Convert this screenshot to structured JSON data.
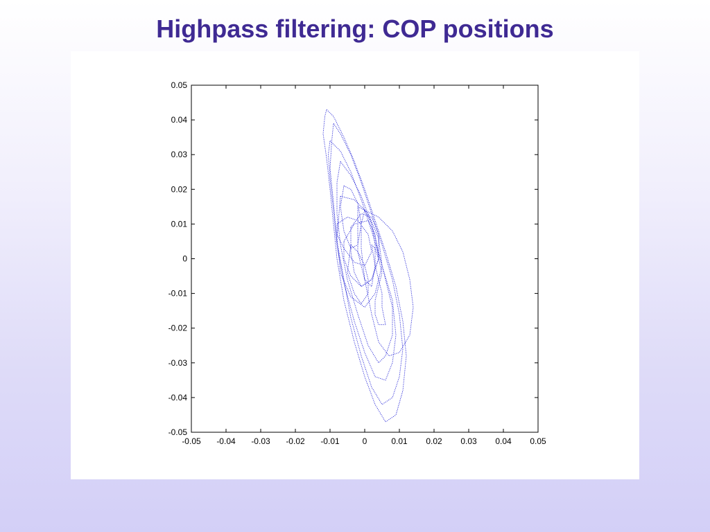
{
  "slide": {
    "title": "Highpass filtering: COP positions"
  },
  "colors": {
    "title": "#3f2a93",
    "trace": "#1f1fd6",
    "axis": "#000000",
    "panel": "#ffffff"
  },
  "chart_data": {
    "type": "line",
    "title": "",
    "xlabel": "",
    "ylabel": "",
    "xlim": [
      -0.05,
      0.05
    ],
    "ylim": [
      -0.05,
      0.05
    ],
    "grid": false,
    "legend": "none",
    "line_style": "dotted",
    "x_ticks": [
      -0.05,
      -0.04,
      -0.03,
      -0.02,
      -0.01,
      0,
      0.01,
      0.02,
      0.03,
      0.04,
      0.05
    ],
    "x_tick_labels": [
      "-0.05",
      "-0.04",
      "-0.03",
      "-0.02",
      "-0.01",
      "0",
      "0.01",
      "0.02",
      "0.03",
      "0.04",
      "0.05"
    ],
    "y_ticks": [
      0.05,
      0.04,
      0.03,
      0.02,
      0.01,
      0,
      -0.01,
      -0.02,
      -0.03,
      -0.04,
      -0.05
    ],
    "y_tick_labels": [
      "0.05",
      "0.04",
      "0.03",
      "0.02",
      "0.01",
      "0",
      "-0.01",
      "-0.02",
      "-0.03",
      "-0.04",
      "-0.05"
    ],
    "series": [
      {
        "x": [
          -0.011,
          -0.009,
          -0.006,
          -0.003,
          0.0,
          0.003,
          0.006,
          0.009,
          0.011,
          0.012,
          0.011,
          0.009,
          0.006,
          0.003,
          0.0,
          -0.003,
          -0.006,
          -0.008,
          -0.009,
          -0.01,
          -0.011,
          -0.012,
          -0.0115,
          -0.011
        ],
        "y": [
          0.043,
          0.041,
          0.035,
          0.028,
          0.02,
          0.011,
          0.002,
          -0.008,
          -0.018,
          -0.028,
          -0.038,
          -0.045,
          -0.047,
          -0.042,
          -0.034,
          -0.024,
          -0.012,
          0.0,
          0.01,
          0.02,
          0.029,
          0.036,
          0.041,
          0.043
        ]
      },
      {
        "x": [
          -0.009,
          -0.007,
          -0.004,
          -0.001,
          0.002,
          0.005,
          0.008,
          0.01,
          0.011,
          0.01,
          0.008,
          0.005,
          0.002,
          -0.001,
          -0.004,
          -0.006,
          -0.008,
          -0.009,
          -0.01,
          -0.0095,
          -0.009
        ],
        "y": [
          0.039,
          0.036,
          0.03,
          0.022,
          0.013,
          0.004,
          -0.006,
          -0.016,
          -0.026,
          -0.034,
          -0.04,
          -0.042,
          -0.037,
          -0.028,
          -0.017,
          -0.006,
          0.005,
          0.016,
          0.026,
          0.034,
          0.039
        ]
      },
      {
        "x": [
          -0.01,
          -0.007,
          -0.004,
          -0.001,
          0.002,
          0.005,
          0.008,
          0.009,
          0.008,
          0.006,
          0.003,
          0.0,
          -0.003,
          -0.006,
          -0.008,
          -0.009,
          -0.01,
          -0.0105,
          -0.01
        ],
        "y": [
          0.034,
          0.031,
          0.025,
          0.017,
          0.008,
          -0.002,
          -0.012,
          -0.022,
          -0.03,
          -0.035,
          -0.034,
          -0.027,
          -0.018,
          -0.007,
          0.004,
          0.014,
          0.023,
          0.03,
          0.034
        ]
      },
      {
        "x": [
          -0.007,
          -0.004,
          -0.001,
          0.002,
          0.004,
          0.006,
          0.008,
          0.008,
          0.006,
          0.004,
          0.001,
          -0.002,
          -0.005,
          -0.007,
          -0.008,
          -0.008,
          -0.007
        ],
        "y": [
          0.028,
          0.024,
          0.018,
          0.01,
          0.002,
          -0.006,
          -0.014,
          -0.022,
          -0.028,
          -0.03,
          -0.025,
          -0.016,
          -0.006,
          0.004,
          0.013,
          0.022,
          0.028
        ]
      },
      {
        "x": [
          0.0,
          0.004,
          0.008,
          0.011,
          0.013,
          0.014,
          0.013,
          0.01,
          0.007,
          0.004,
          0.002,
          0.0,
          -0.001,
          -0.001,
          0.0
        ],
        "y": [
          0.014,
          0.012,
          0.008,
          0.002,
          -0.006,
          -0.014,
          -0.022,
          -0.027,
          -0.028,
          -0.024,
          -0.016,
          -0.006,
          0.003,
          0.01,
          0.014
        ]
      },
      {
        "x": [
          -0.006,
          -0.003,
          0.001,
          0.003,
          0.004,
          0.002,
          -0.001,
          -0.004,
          -0.006,
          -0.006
        ],
        "y": [
          0.005,
          0.01,
          0.011,
          0.007,
          0.0,
          -0.006,
          -0.008,
          -0.005,
          0.0,
          0.005
        ]
      },
      {
        "x": [
          -0.004,
          -0.001,
          0.002,
          0.004,
          0.004,
          0.002,
          -0.001,
          -0.003,
          -0.004,
          -0.004
        ],
        "y": [
          0.009,
          0.013,
          0.012,
          0.007,
          0.0,
          -0.006,
          -0.008,
          -0.004,
          0.002,
          0.009
        ]
      },
      {
        "x": [
          -0.008,
          -0.005,
          -0.002,
          0.001,
          0.002,
          0.0,
          -0.003,
          -0.006,
          -0.008,
          -0.008
        ],
        "y": [
          0.01,
          0.012,
          0.011,
          0.007,
          0.002,
          -0.002,
          -0.001,
          0.003,
          0.007,
          0.01
        ]
      },
      {
        "x": [
          -0.006,
          -0.004,
          -0.002,
          -0.001,
          -0.002,
          -0.004,
          -0.006,
          -0.007,
          -0.006
        ],
        "y": [
          0.021,
          0.02,
          0.016,
          0.01,
          0.004,
          0.003,
          0.008,
          0.015,
          0.021
        ]
      },
      {
        "x": [
          -0.002,
          0.0,
          0.002,
          0.003,
          0.003,
          0.002,
          0.0,
          -0.002,
          -0.002
        ],
        "y": [
          0.015,
          0.014,
          0.01,
          0.004,
          -0.002,
          -0.008,
          -0.006,
          0.002,
          0.015
        ]
      },
      {
        "x": [
          -0.004,
          -0.002,
          0.0,
          0.001,
          0.001,
          -0.001,
          -0.003,
          -0.005,
          -0.004
        ],
        "y": [
          0.004,
          0.002,
          -0.002,
          -0.006,
          -0.01,
          -0.013,
          -0.01,
          -0.004,
          0.004
        ]
      },
      {
        "x": [
          0.002,
          0.003,
          0.004,
          0.005,
          0.005,
          0.006,
          0.004,
          0.003,
          0.003,
          0.004,
          0.005,
          0.004,
          0.003,
          0.002
        ],
        "y": [
          0.004,
          -0.002,
          -0.006,
          -0.01,
          -0.014,
          -0.019,
          -0.019,
          -0.016,
          -0.012,
          -0.008,
          -0.004,
          0.0,
          0.003,
          0.004
        ]
      },
      {
        "x": [
          -0.007,
          -0.003,
          0.001,
          0.004,
          0.005,
          0.003,
          0.0,
          -0.004,
          -0.007,
          -0.008,
          -0.007
        ],
        "y": [
          0.018,
          0.017,
          0.013,
          0.006,
          -0.002,
          -0.01,
          -0.014,
          -0.011,
          -0.004,
          0.006,
          0.018
        ]
      }
    ]
  }
}
